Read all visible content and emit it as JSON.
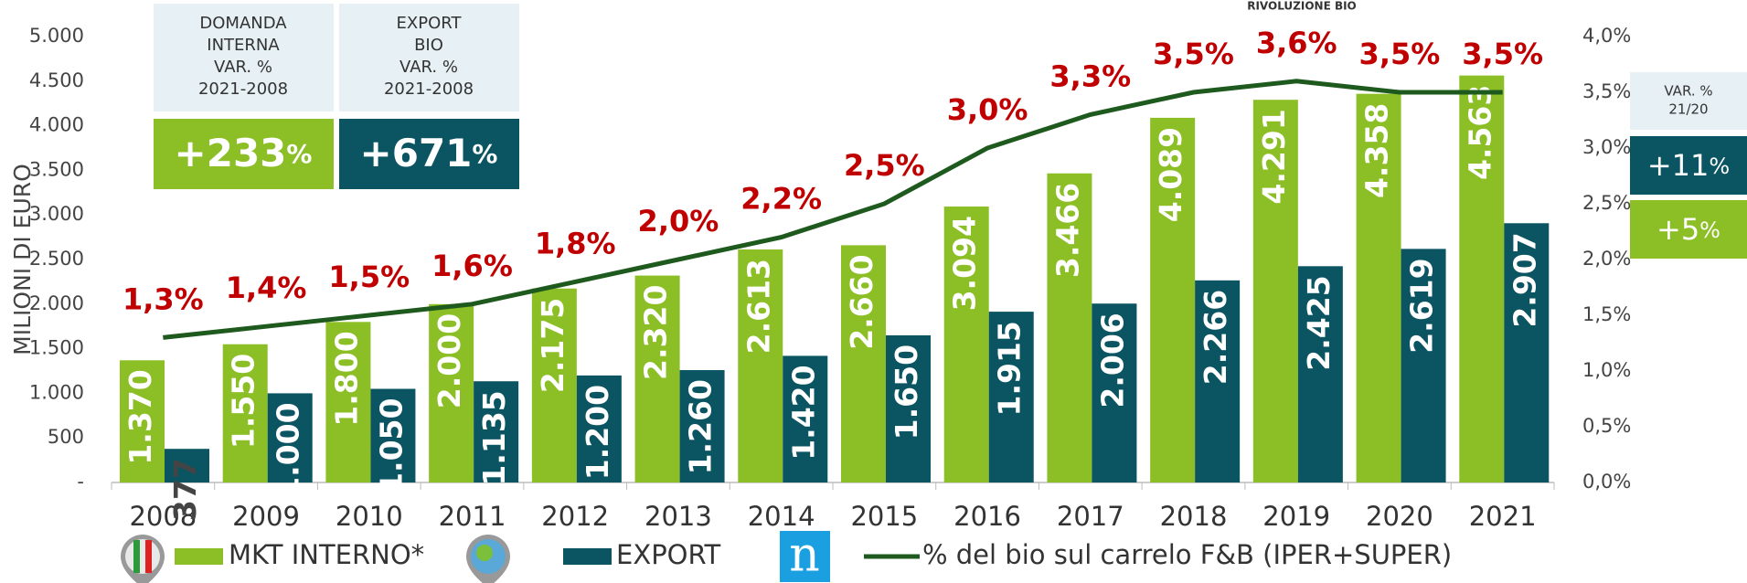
{
  "chart_data": {
    "type": "bar",
    "title": "RIVOLUZIONE BIO",
    "ylabel": "MILIONI DI EURO",
    "categories": [
      "2008",
      "2009",
      "2010",
      "2011",
      "2012",
      "2013",
      "2014",
      "2015",
      "2016",
      "2017",
      "2018",
      "2019",
      "2020",
      "2021"
    ],
    "series": [
      {
        "name": "MKT INTERNO*",
        "color": "#8cbf26",
        "type": "bar",
        "values": [
          1370,
          1550,
          1800,
          2000,
          2175,
          2320,
          2613,
          2660,
          3094,
          3466,
          4089,
          4291,
          4358,
          4563
        ],
        "value_labels": [
          "1.370",
          "1.550",
          "1.800",
          "2.000",
          "2.175",
          "2.320",
          "2.613",
          "2.660",
          "3.094",
          "3.466",
          "4.089",
          "4.291",
          "4.358",
          "4.563"
        ]
      },
      {
        "name": "EXPORT",
        "color": "#0b5563",
        "type": "bar",
        "values": [
          377,
          1000,
          1050,
          1135,
          1200,
          1260,
          1420,
          1650,
          1915,
          2006,
          2266,
          2425,
          2619,
          2907
        ],
        "value_labels": [
          "377",
          "1.000",
          "1.050",
          "1.135",
          "1.200",
          "1.260",
          "1.420",
          "1.650",
          "1.915",
          "2.006",
          "2.266",
          "2.425",
          "2.619",
          "2.907"
        ]
      },
      {
        "name": "% del bio sul carrelo F&B (IPER+SUPER)",
        "color": "#1e5a1e",
        "type": "line",
        "axis": "y2",
        "values": [
          1.3,
          1.4,
          1.5,
          1.6,
          1.8,
          2.0,
          2.2,
          2.5,
          3.0,
          3.3,
          3.5,
          3.6,
          3.5,
          3.5
        ],
        "value_labels": [
          "1,3%",
          "1,4%",
          "1,5%",
          "1,6%",
          "1,8%",
          "2,0%",
          "2,2%",
          "2,5%",
          "3,0%",
          "3,3%",
          "3,5%",
          "3,6%",
          "3,5%",
          "3,5%"
        ]
      }
    ],
    "ylim": [
      0,
      5000
    ],
    "yticks": [
      {
        "value": 0,
        "label": "-"
      },
      500,
      {
        "value": 1000,
        "label": "1.000"
      },
      {
        "value": 1500,
        "label": "1.500"
      },
      {
        "value": 2000,
        "label": "2.000"
      },
      {
        "value": 2500,
        "label": "2.500"
      },
      {
        "value": 3000,
        "label": "3.000"
      },
      {
        "value": 3500,
        "label": "3.500"
      },
      {
        "value": 4000,
        "label": "4.000"
      },
      {
        "value": 4500,
        "label": "4.500"
      },
      {
        "value": 5000,
        "label": "5.000"
      }
    ],
    "y2lim": [
      0,
      4
    ],
    "y2ticks": [
      {
        "value": 0,
        "label": "0,0%"
      },
      {
        "value": 0.5,
        "label": "0,5%"
      },
      {
        "value": 1,
        "label": "1,0%"
      },
      {
        "value": 1.5,
        "label": "1,5%"
      },
      {
        "value": 2,
        "label": "2,0%"
      },
      {
        "value": 2.5,
        "label": "2,5%"
      },
      {
        "value": 3,
        "label": "3,0%"
      },
      {
        "value": 3.5,
        "label": "3,5%"
      },
      {
        "value": 4,
        "label": "4,0%"
      }
    ],
    "grid": false,
    "boxes": [
      {
        "header": [
          "DOMANDA",
          "INTERNA",
          "VAR. %",
          "2021-2008"
        ],
        "value": "+233",
        "unit": "%"
      },
      {
        "header": [
          "EXPORT",
          "BIO",
          "VAR. %",
          "2021-2008"
        ],
        "value": "+671",
        "unit": "%"
      }
    ],
    "change_box": {
      "header": [
        "VAR. %",
        "21/20"
      ],
      "export": {
        "value": "+11",
        "unit": "%"
      },
      "domestic": {
        "value": "+5",
        "unit": "%"
      }
    },
    "logo": "n"
  }
}
